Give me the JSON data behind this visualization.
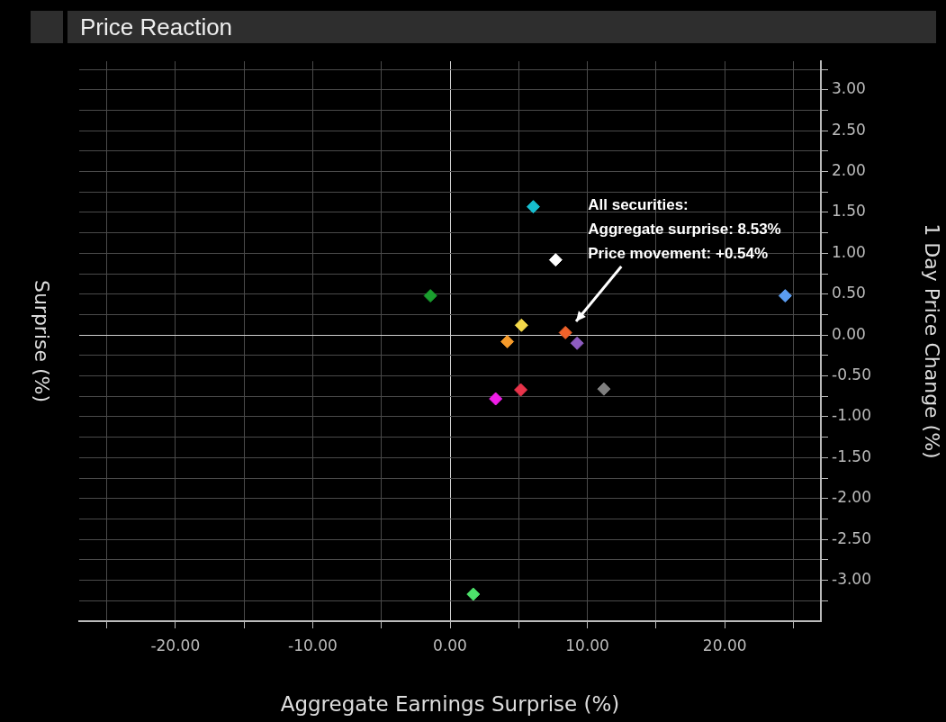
{
  "chart_data": {
    "type": "scatter",
    "title": "Price Reaction",
    "xlabel": "Aggregate Earnings Surprise (%)",
    "ylabel": "1 Day Price Change (%)",
    "annotations": [
      "Surprise (%)",
      "All securities:\nAggregate surprise: 8.53%\nPrice movement: +0.54%"
    ],
    "x": [
      6.06,
      7.69,
      -1.43,
      24.4,
      5.2,
      4.17,
      8.4,
      9.25,
      5.15,
      3.32,
      11.2,
      1.69
    ],
    "values": [
      1.57,
      0.92,
      0.48,
      0.48,
      0.12,
      -0.08,
      0.03,
      -0.1,
      -0.67,
      -0.78,
      -0.66,
      -3.17
    ],
    "colors": [
      "#17becf",
      "#ffffff",
      "#1a9e2e",
      "#5b9cf0",
      "#f5d94a",
      "#f59a2a",
      "#f0622a",
      "#8e5cc0",
      "#e8334a",
      "#f01ee8",
      "#7f7f7f",
      "#4de06a"
    ],
    "marker": "diamond",
    "grid": true,
    "xlim": [
      -27,
      27
    ],
    "xticks": [
      {
        "value": -25,
        "label": null
      },
      {
        "value": -20,
        "label": "-20.00"
      },
      {
        "value": -15,
        "label": null
      },
      {
        "value": -10,
        "label": "-10.00"
      },
      {
        "value": -5,
        "label": null
      },
      {
        "value": 0,
        "label": "0.00"
      },
      {
        "value": 5,
        "label": null
      },
      {
        "value": 10,
        "label": "10.00"
      },
      {
        "value": 15,
        "label": null
      },
      {
        "value": 20,
        "label": "20.00"
      },
      {
        "value": 25,
        "label": null
      }
    ],
    "ylim": [
      -3.5,
      3.35
    ],
    "yticks": [
      {
        "value": -3.25,
        "label": null
      },
      {
        "value": -3,
        "label": "-3.00"
      },
      {
        "value": -2.75,
        "label": null
      },
      {
        "value": -2.5,
        "label": "-2.50"
      },
      {
        "value": -2.25,
        "label": null
      },
      {
        "value": -2,
        "label": "-2.00"
      },
      {
        "value": -1.75,
        "label": null
      },
      {
        "value": -1.5,
        "label": "-1.50"
      },
      {
        "value": -1.25,
        "label": null
      },
      {
        "value": -1,
        "label": "-1.00"
      },
      {
        "value": -0.75,
        "label": null
      },
      {
        "value": -0.5,
        "label": "-0.50"
      },
      {
        "value": -0.25,
        "label": null
      },
      {
        "value": 0,
        "label": "0.00"
      },
      {
        "value": 0.25,
        "label": null
      },
      {
        "value": 0.5,
        "label": "0.50"
      },
      {
        "value": 0.75,
        "label": null
      },
      {
        "value": 1,
        "label": "1.00"
      },
      {
        "value": 1.25,
        "label": null
      },
      {
        "value": 1.5,
        "label": "1.50"
      },
      {
        "value": 1.75,
        "label": null
      },
      {
        "value": 2,
        "label": "2.00"
      },
      {
        "value": 2.25,
        "label": null
      },
      {
        "value": 2.5,
        "label": "2.50"
      },
      {
        "value": 2.75,
        "label": null
      },
      {
        "value": 3,
        "label": "3.00"
      },
      {
        "value": 3.25,
        "label": null
      }
    ]
  }
}
